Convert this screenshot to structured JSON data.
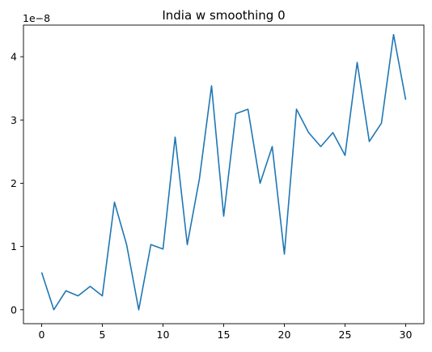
{
  "chart_data": {
    "type": "line",
    "title": "India w smoothing 0",
    "xlabel": "",
    "ylabel": "",
    "y_offset_label": "1e−8",
    "xlim": [
      -1.5,
      31.5
    ],
    "ylim": [
      -0.22,
      4.5
    ],
    "x_ticks": [
      0,
      5,
      10,
      15,
      20,
      25,
      30
    ],
    "y_ticks": [
      0,
      1,
      2,
      3,
      4
    ],
    "grid": false,
    "series": [
      {
        "color": "#1f77b4",
        "x": [
          0,
          1,
          2,
          3,
          4,
          5,
          6,
          7,
          8,
          9,
          10,
          11,
          12,
          13,
          14,
          15,
          16,
          17,
          18,
          19,
          20,
          21,
          22,
          23,
          24,
          25,
          26,
          27,
          28,
          29,
          30
        ],
        "values": [
          0.59,
          0.0,
          0.3,
          0.22,
          0.37,
          0.22,
          1.7,
          1.03,
          0.0,
          1.03,
          0.96,
          2.73,
          1.03,
          2.07,
          3.54,
          1.48,
          3.1,
          3.17,
          2.0,
          2.58,
          0.88,
          3.17,
          2.8,
          2.58,
          2.8,
          2.44,
          3.91,
          2.66,
          2.95,
          4.35,
          3.32
        ]
      }
    ]
  }
}
